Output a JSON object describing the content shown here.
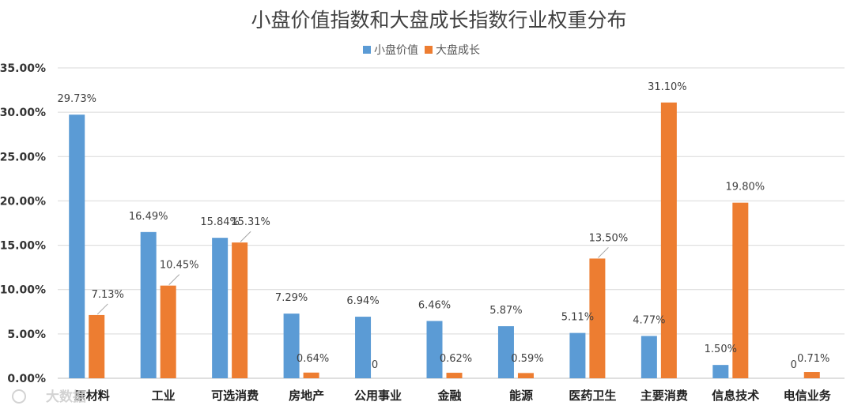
{
  "chart_data": {
    "type": "bar",
    "title": "小盘价值指数和大盘成长指数行业权重分布",
    "categories": [
      "原材料",
      "工业",
      "可选消费",
      "房地产",
      "公用事业",
      "金融",
      "能源",
      "医药卫生",
      "主要消费",
      "信息技术",
      "电信业务"
    ],
    "series": [
      {
        "name": "小盘价值",
        "color": "#5B9BD5",
        "values": [
          29.73,
          16.49,
          15.84,
          7.29,
          6.94,
          6.46,
          5.87,
          5.11,
          4.77,
          1.5,
          0
        ],
        "labels": [
          "29.73%",
          "16.49%",
          "15.84%",
          "7.29%",
          "6.94%",
          "6.46%",
          "5.87%",
          "5.11%",
          "4.77%",
          "1.50%",
          "0"
        ]
      },
      {
        "name": "大盘成长",
        "color": "#ED7D31",
        "values": [
          7.13,
          10.45,
          15.31,
          0.64,
          0,
          0.62,
          0.59,
          13.5,
          31.1,
          19.8,
          0.71
        ],
        "labels": [
          "7.13%",
          "10.45%",
          "15.31%",
          "0.64%",
          "0",
          "0.62%",
          "0.59%",
          "13.50%",
          "31.10%",
          "19.80%",
          "0.71%"
        ]
      }
    ],
    "ylim": [
      0,
      35
    ],
    "yticks": [
      "0.00%",
      "5.00%",
      "10.00%",
      "15.00%",
      "20.00%",
      "25.00%",
      "30.00%",
      "35.00%"
    ],
    "grid": true,
    "legend_position": "top-center",
    "watermark": "大数据"
  }
}
